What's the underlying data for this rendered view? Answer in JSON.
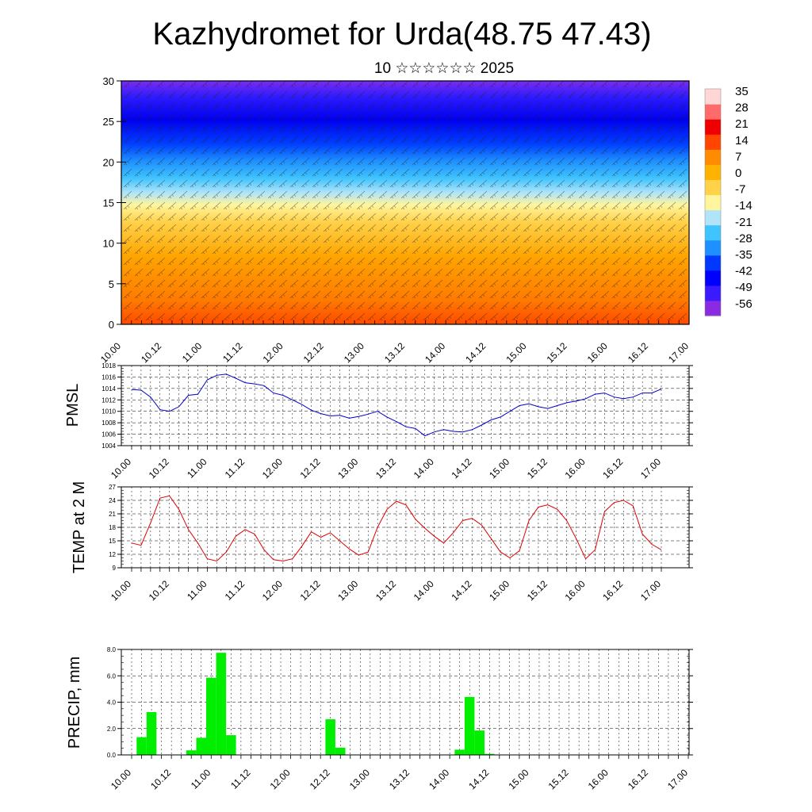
{
  "header": {
    "title": "Kazhydromet for Urda(48.75 47.43)",
    "subtitle": "10 ☆☆☆☆☆☆ 2025"
  },
  "time_labels": [
    "10.00",
    "10.12",
    "11.00",
    "11.12",
    "12.00",
    "12.12",
    "13.00",
    "13.12",
    "14.00",
    "14.12",
    "15.00",
    "15.12",
    "16.00",
    "16.12",
    "17.00"
  ],
  "colors": {
    "pmsl_line": "#0000cc",
    "temp_line": "#dd0000",
    "precip_bar": "#00ee00"
  },
  "chart_data": [
    {
      "type": "heatmap",
      "name": "vertical-cross-section",
      "ylim": [
        0,
        30
      ],
      "yticks": [
        "0",
        "5",
        "10",
        "15",
        "20",
        "25",
        "30"
      ],
      "colorbar_labels": [
        "35",
        "28",
        "21",
        "14",
        "7",
        "0",
        "-7",
        "-14",
        "-21",
        "-28",
        "-35",
        "-42",
        "-49",
        "-56"
      ],
      "colorbar_range": [
        -63,
        42
      ],
      "colorbar_colors": [
        "#8a2be2",
        "#3a1aff",
        "#0000ff",
        "#0038ff",
        "#1e90ff",
        "#40c4ff",
        "#b0e4f8",
        "#fff59d",
        "#ffd24a",
        "#ffb300",
        "#ff8c00",
        "#ff4500",
        "#ee0000",
        "#ff6a6a",
        "#ffd6d6"
      ]
    },
    {
      "type": "line",
      "name": "pmsl",
      "ylabel": "PMSL",
      "ylim": [
        1004,
        1018
      ],
      "yticks": [
        "1004",
        "1006",
        "1008",
        "1010",
        "1012",
        "1014",
        "1016",
        "1018"
      ],
      "values": [
        1013.8,
        1013.7,
        1012.5,
        1010.3,
        1010.0,
        1010.8,
        1012.8,
        1013.0,
        1015.5,
        1016.3,
        1016.5,
        1015.8,
        1015.0,
        1014.8,
        1014.5,
        1013.2,
        1012.8,
        1012.0,
        1011.2,
        1010.2,
        1009.6,
        1009.2,
        1009.3,
        1008.8,
        1009.1,
        1009.5,
        1010.0,
        1009.0,
        1008.2,
        1007.3,
        1007.0,
        1005.7,
        1006.4,
        1006.8,
        1006.5,
        1006.4,
        1006.8,
        1007.6,
        1008.5,
        1009.0,
        1010.0,
        1011.0,
        1011.3,
        1010.8,
        1010.5,
        1011.0,
        1011.5,
        1011.8,
        1012.2,
        1013.0,
        1013.2,
        1012.5,
        1012.2,
        1012.5,
        1013.2,
        1013.2,
        1013.9
      ]
    },
    {
      "type": "line",
      "name": "temp",
      "ylabel": "TEMP at 2 M",
      "ylim": [
        9,
        27
      ],
      "yticks": [
        "9",
        "12",
        "15",
        "18",
        "21",
        "24",
        "27"
      ],
      "values": [
        14.5,
        14.0,
        19.0,
        24.5,
        25.0,
        22.0,
        17.5,
        14.5,
        11.0,
        10.5,
        12.5,
        16.0,
        17.5,
        16.5,
        13.0,
        10.8,
        10.5,
        11.0,
        13.8,
        17.0,
        15.8,
        16.8,
        15.0,
        13.2,
        11.8,
        12.5,
        18.0,
        22.0,
        23.8,
        23.0,
        19.8,
        17.8,
        16.0,
        14.5,
        16.8,
        19.5,
        20.0,
        18.5,
        15.5,
        12.5,
        11.2,
        12.8,
        19.5,
        22.5,
        23.0,
        22.0,
        19.5,
        15.5,
        11.0,
        13.0,
        21.5,
        23.5,
        24.0,
        22.8,
        16.5,
        14.2,
        13.0
      ]
    },
    {
      "type": "bar",
      "name": "precip",
      "ylabel": "PRECIP, mm",
      "ylim": [
        0,
        8
      ],
      "yticks": [
        "0.0",
        "2.0",
        "4.0",
        "6.0",
        "8.0"
      ],
      "values": [
        0,
        1.35,
        3.25,
        0,
        0,
        0,
        0.35,
        1.3,
        5.85,
        7.75,
        1.5,
        0,
        0,
        0,
        0,
        0,
        0,
        0,
        0,
        0,
        2.7,
        0.55,
        0,
        0,
        0,
        0,
        0,
        0,
        0,
        0,
        0,
        0,
        0,
        0.4,
        4.4,
        1.85,
        0.08,
        0,
        0,
        0,
        0,
        0,
        0,
        0,
        0,
        0,
        0,
        0,
        0,
        0,
        0,
        0,
        0,
        0,
        0,
        0,
        0
      ]
    }
  ]
}
